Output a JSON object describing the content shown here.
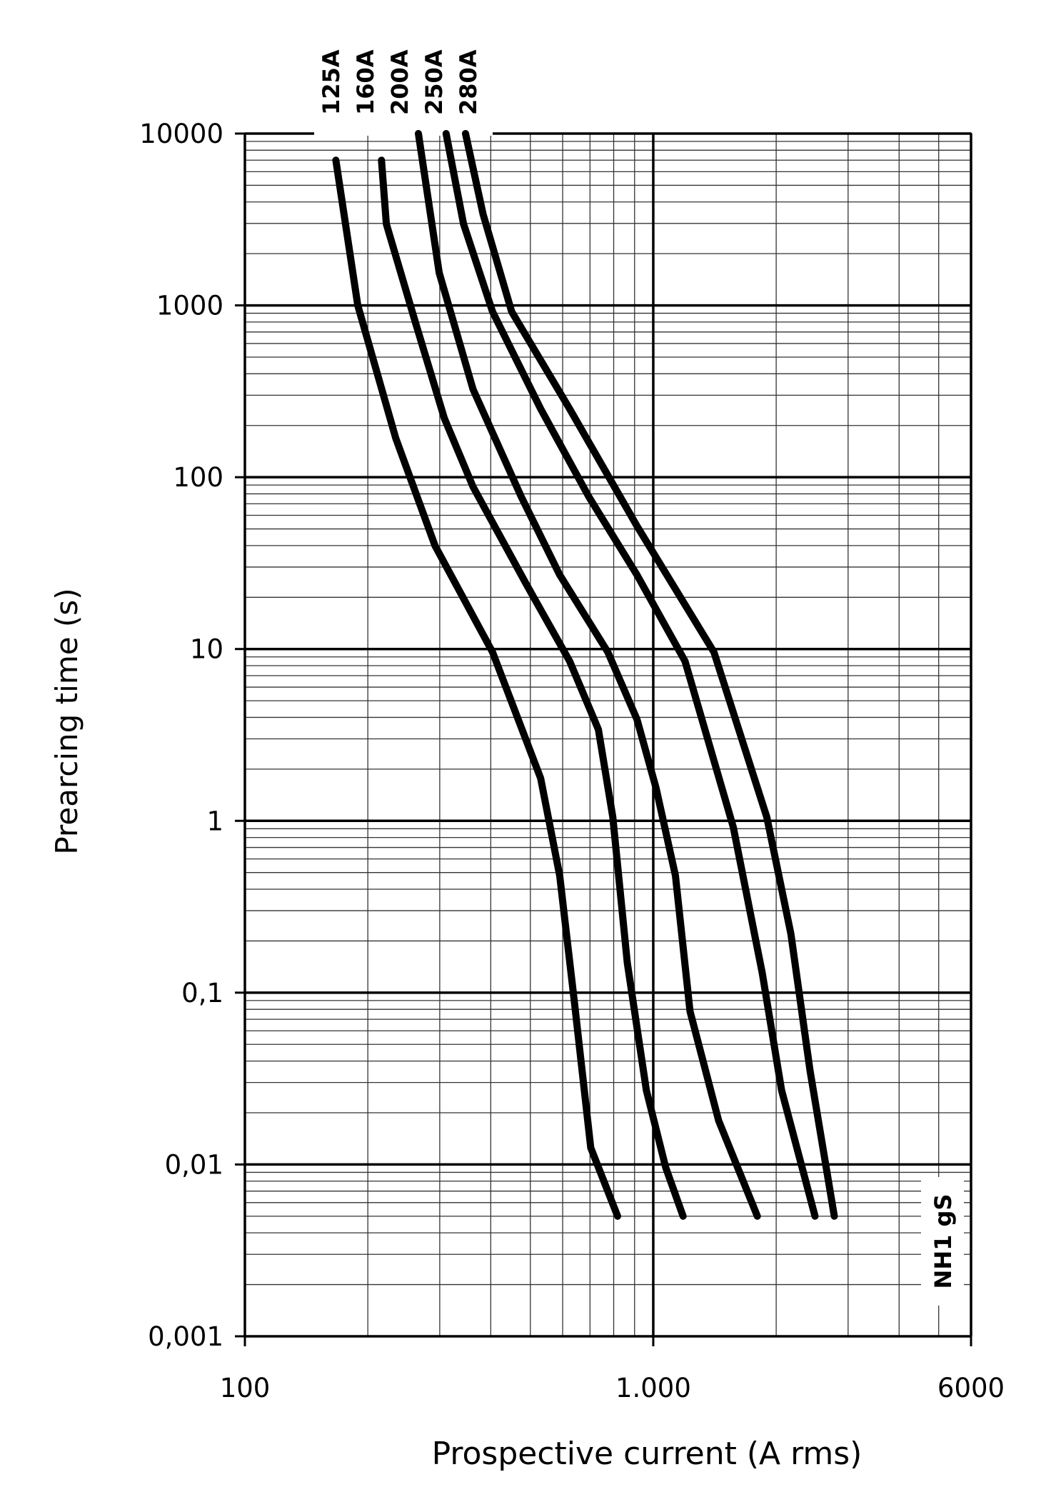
{
  "chart_data": {
    "type": "line",
    "xlabel": "Prospective current (A rms)",
    "ylabel": "Prearcing time (s)",
    "annotation": "NH1 gS",
    "xscale": "log",
    "yscale": "log",
    "xlim": [
      100,
      6000
    ],
    "ylim": [
      0.001,
      10000
    ],
    "xticks": [
      100,
      {
        "value": 1000,
        "label": "1.000"
      },
      6000
    ],
    "yticks": [
      {
        "value": 0.001,
        "label": "0,001"
      },
      {
        "value": 0.01,
        "label": "0,01"
      },
      {
        "value": 0.1,
        "label": "0,1"
      },
      1,
      10,
      100,
      1000,
      10000
    ],
    "grid": true,
    "minor_grid": true,
    "series": [
      {
        "name": "125A",
        "color": "#000000",
        "x": [
          167,
          189,
          234,
          292,
          404,
          530,
          590,
          641,
          703,
          818
        ],
        "values": [
          7000,
          1000,
          169,
          40,
          9.6,
          1.77,
          0.48,
          0.088,
          0.0125,
          0.005
        ]
      },
      {
        "name": "160A",
        "color": "#000000",
        "x": [
          216,
          222,
          261,
          308,
          362,
          488,
          624,
          734,
          796,
          864,
          962,
          1073,
          1183
        ],
        "values": [
          7000,
          2980,
          809,
          220,
          88,
          24,
          8.5,
          3.4,
          1.05,
          0.149,
          0.027,
          0.0096,
          0.005
        ]
      },
      {
        "name": "200A",
        "color": "#000000",
        "x": [
          266,
          299,
          362,
          475,
          590,
          774,
          912,
          1016,
          1133,
          1230,
          1446,
          1798
        ],
        "values": [
          10000,
          1550,
          325,
          77,
          27,
          9.6,
          3.9,
          1.55,
          0.48,
          0.078,
          0.018,
          0.005
        ]
      },
      {
        "name": "250A",
        "color": "#000000",
        "x": [
          311,
          343,
          404,
          530,
          695,
          912,
          1196,
          1570,
          1849,
          2062,
          2490
        ],
        "values": [
          10000,
          2980,
          920,
          250,
          77,
          27,
          8.5,
          0.92,
          0.13,
          0.027,
          0.005
        ]
      },
      {
        "name": "280A",
        "color": "#000000",
        "x": [
          347,
          383,
          450,
          624,
          912,
          1408,
          1897,
          2173,
          2421,
          2775
        ],
        "values": [
          10000,
          3390,
          920,
          250,
          52,
          9.6,
          1.05,
          0.22,
          0.035,
          0.005
        ]
      }
    ]
  }
}
